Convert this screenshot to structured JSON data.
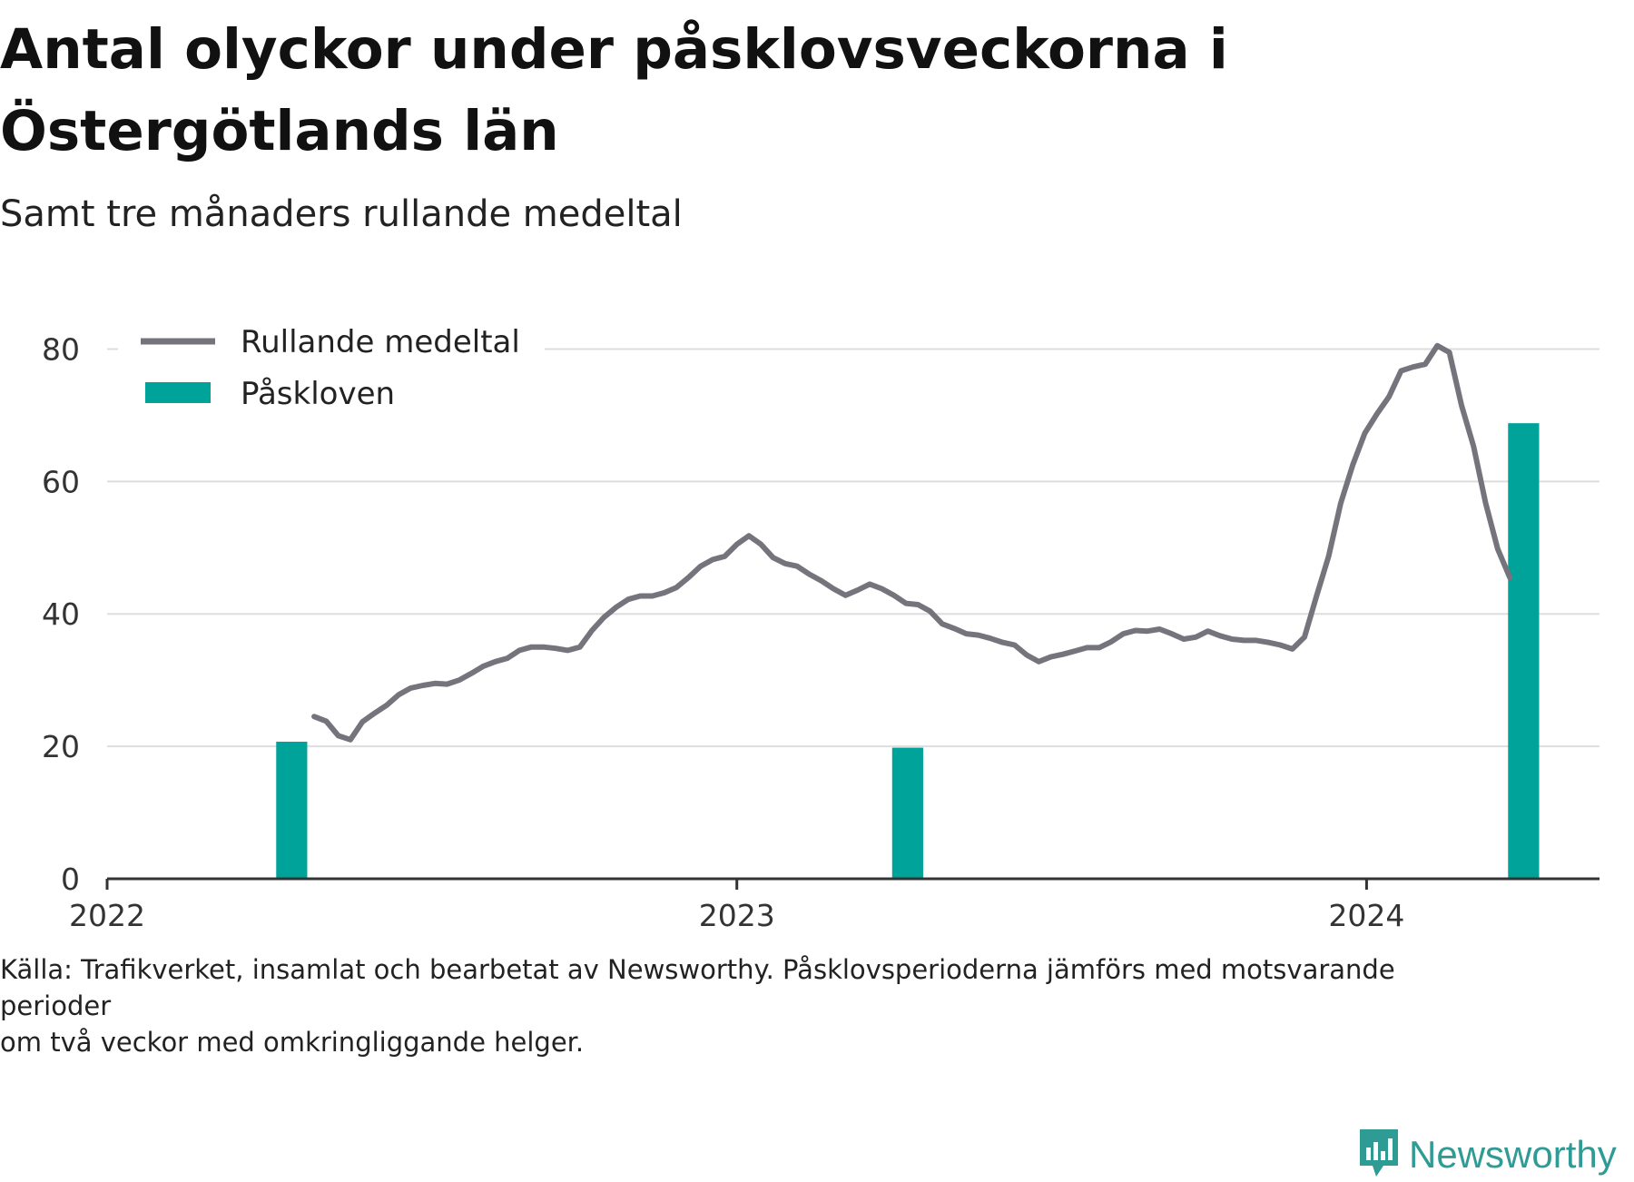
{
  "title": "Antal olyckor under påsklovsveckorna i Östergötlands län",
  "subtitle": "Samt tre månaders rullande medeltal",
  "source": {
    "line1": "Källa: Trafikverket, insamlat och bearbetat av Newsworthy. Påsklovsperioderna jämförs med motsvarande",
    "line2": "perioder",
    "line3": "om två veckor med omkringliggande helger."
  },
  "brand": {
    "name": "Newsworthy",
    "icon": "newsworthy-logo-icon"
  },
  "colors": {
    "line": "#75747c",
    "bar": "#00a399",
    "grid": "#dddddd",
    "axis": "#333333",
    "brand": "#2e9b94"
  },
  "chart_data": {
    "type": "line+bar",
    "x_axis": {
      "type": "date",
      "min": "2022-01-01",
      "max": "2024-05-15",
      "ticks": [
        "2022",
        "2023",
        "2024"
      ]
    },
    "y_axis": {
      "min": 0,
      "max": 85,
      "ticks": [
        0,
        20,
        40,
        60,
        80
      ]
    },
    "grid": true,
    "legend": {
      "position": "top-left",
      "items": [
        {
          "label": "Rullande medeltal",
          "kind": "line"
        },
        {
          "label": "Påskloven",
          "kind": "bar"
        }
      ]
    },
    "series": [
      {
        "name": "Rullande medeltal",
        "type": "line",
        "points": [
          [
            "2022-05-01",
            24.5
          ],
          [
            "2022-05-08",
            23.8
          ],
          [
            "2022-05-15",
            21.6
          ],
          [
            "2022-05-22",
            21.0
          ],
          [
            "2022-05-29",
            23.7
          ],
          [
            "2022-06-05",
            25.0
          ],
          [
            "2022-06-12",
            26.2
          ],
          [
            "2022-06-19",
            27.8
          ],
          [
            "2022-06-26",
            28.8
          ],
          [
            "2022-07-03",
            29.2
          ],
          [
            "2022-07-10",
            29.5
          ],
          [
            "2022-07-17",
            29.4
          ],
          [
            "2022-07-24",
            30.0
          ],
          [
            "2022-07-31",
            31.0
          ],
          [
            "2022-08-07",
            32.1
          ],
          [
            "2022-08-14",
            32.8
          ],
          [
            "2022-08-21",
            33.3
          ],
          [
            "2022-08-28",
            34.5
          ],
          [
            "2022-09-04",
            35.0
          ],
          [
            "2022-09-11",
            35.0
          ],
          [
            "2022-09-18",
            34.8
          ],
          [
            "2022-09-25",
            34.5
          ],
          [
            "2022-10-02",
            35.0
          ],
          [
            "2022-10-09",
            37.5
          ],
          [
            "2022-10-16",
            39.5
          ],
          [
            "2022-10-23",
            41.0
          ],
          [
            "2022-10-30",
            42.2
          ],
          [
            "2022-11-06",
            42.7
          ],
          [
            "2022-11-13",
            42.7
          ],
          [
            "2022-11-20",
            43.2
          ],
          [
            "2022-11-27",
            44.0
          ],
          [
            "2022-12-04",
            45.5
          ],
          [
            "2022-12-11",
            47.2
          ],
          [
            "2022-12-18",
            48.2
          ],
          [
            "2022-12-25",
            48.7
          ],
          [
            "2023-01-01",
            50.5
          ],
          [
            "2023-01-08",
            51.8
          ],
          [
            "2023-01-15",
            50.5
          ],
          [
            "2023-01-22",
            48.5
          ],
          [
            "2023-01-29",
            47.6
          ],
          [
            "2023-02-05",
            47.2
          ],
          [
            "2023-02-12",
            46.0
          ],
          [
            "2023-02-19",
            45.0
          ],
          [
            "2023-02-26",
            43.8
          ],
          [
            "2023-03-05",
            42.8
          ],
          [
            "2023-03-12",
            43.6
          ],
          [
            "2023-03-19",
            44.5
          ],
          [
            "2023-03-26",
            43.8
          ],
          [
            "2023-04-02",
            42.8
          ],
          [
            "2023-04-09",
            41.6
          ],
          [
            "2023-04-16",
            41.4
          ],
          [
            "2023-04-23",
            40.4
          ],
          [
            "2023-04-30",
            38.5
          ],
          [
            "2023-05-07",
            37.8
          ],
          [
            "2023-05-14",
            37.0
          ],
          [
            "2023-05-21",
            36.8
          ],
          [
            "2023-05-28",
            36.3
          ],
          [
            "2023-06-04",
            35.7
          ],
          [
            "2023-06-11",
            35.3
          ],
          [
            "2023-06-18",
            33.8
          ],
          [
            "2023-06-25",
            32.8
          ],
          [
            "2023-07-02",
            33.5
          ],
          [
            "2023-07-09",
            33.9
          ],
          [
            "2023-07-16",
            34.4
          ],
          [
            "2023-07-23",
            34.9
          ],
          [
            "2023-07-30",
            34.9
          ],
          [
            "2023-08-06",
            35.8
          ],
          [
            "2023-08-13",
            37.0
          ],
          [
            "2023-08-20",
            37.5
          ],
          [
            "2023-08-27",
            37.4
          ],
          [
            "2023-09-03",
            37.7
          ],
          [
            "2023-09-10",
            37.0
          ],
          [
            "2023-09-17",
            36.2
          ],
          [
            "2023-09-24",
            36.5
          ],
          [
            "2023-10-01",
            37.4
          ],
          [
            "2023-10-08",
            36.7
          ],
          [
            "2023-10-15",
            36.2
          ],
          [
            "2023-10-22",
            36.0
          ],
          [
            "2023-10-29",
            36.0
          ],
          [
            "2023-11-05",
            35.7
          ],
          [
            "2023-11-12",
            35.3
          ],
          [
            "2023-11-19",
            34.7
          ],
          [
            "2023-11-26",
            36.5
          ],
          [
            "2023-12-03",
            42.7
          ],
          [
            "2023-12-10",
            48.7
          ],
          [
            "2023-12-17",
            56.7
          ],
          [
            "2023-12-24",
            62.5
          ],
          [
            "2023-12-31",
            67.3
          ],
          [
            "2024-01-07",
            70.2
          ],
          [
            "2024-01-14",
            72.8
          ],
          [
            "2024-01-21",
            76.7
          ],
          [
            "2024-01-28",
            77.3
          ],
          [
            "2024-02-04",
            77.7
          ],
          [
            "2024-02-11",
            80.5
          ],
          [
            "2024-02-18",
            79.5
          ],
          [
            "2024-02-25",
            71.5
          ],
          [
            "2024-03-03",
            65.3
          ],
          [
            "2024-03-10",
            56.7
          ],
          [
            "2024-03-17",
            49.8
          ],
          [
            "2024-03-24",
            45.5
          ]
        ]
      },
      {
        "name": "Påskloven",
        "type": "bar",
        "bars": [
          {
            "start": "2022-04-09",
            "end": "2022-04-27",
            "value": 20.7
          },
          {
            "start": "2023-04-01",
            "end": "2023-04-19",
            "value": 19.8
          },
          {
            "start": "2024-03-23",
            "end": "2024-04-10",
            "value": 68.8
          }
        ]
      }
    ]
  }
}
